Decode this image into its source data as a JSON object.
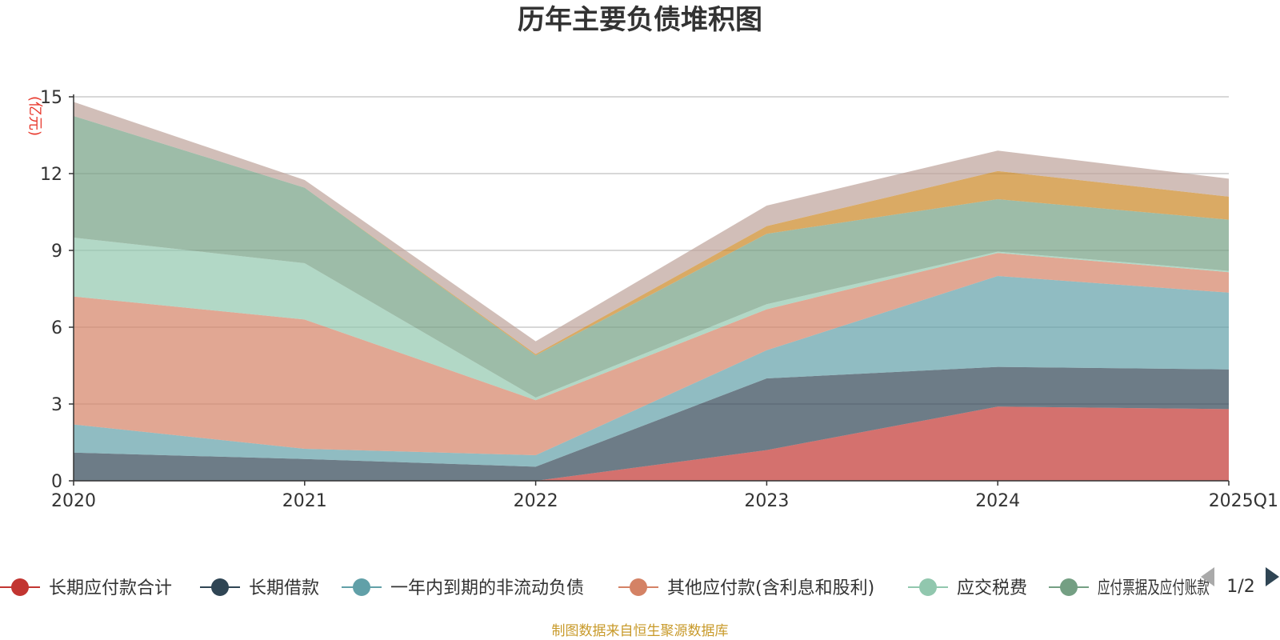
{
  "chart_data": {
    "type": "area",
    "title": "历年主要负债堆积图",
    "ylabel": "(亿元)",
    "ylim": [
      0,
      15
    ],
    "yticks": [
      0,
      3,
      6,
      9,
      12,
      15
    ],
    "categories": [
      "2020",
      "2021",
      "2022",
      "2023",
      "2024",
      "2025Q1"
    ],
    "grid": true,
    "stacked": true,
    "series": [
      {
        "name": "长期应付款合计",
        "color": "#c23531",
        "values": [
          0,
          0,
          0,
          1.2,
          2.9,
          2.8
        ]
      },
      {
        "name": "长期借款",
        "color": "#2f4554",
        "values": [
          1.1,
          0.85,
          0.55,
          2.8,
          1.55,
          1.55
        ]
      },
      {
        "name": "一年内到期的非流动负债",
        "color": "#61a0a8",
        "values": [
          1.1,
          0.4,
          0.45,
          1.1,
          3.55,
          3.0
        ]
      },
      {
        "name": "其他应付款(含利息和股利)",
        "color": "#d48265",
        "values": [
          5.0,
          5.05,
          2.15,
          1.6,
          0.9,
          0.8
        ]
      },
      {
        "name": "应交税费",
        "color": "#91c7ae",
        "values": [
          2.3,
          2.2,
          0.1,
          0.2,
          0.05,
          0.05
        ]
      },
      {
        "name": "应付票据及应付账款",
        "color": "#749f83",
        "values": [
          4.75,
          2.95,
          1.65,
          2.75,
          2.05,
          2.0
        ]
      },
      {
        "name": "",
        "color": "#ca8622",
        "values": [
          0,
          0,
          0.05,
          0.3,
          1.1,
          0.9
        ]
      },
      {
        "name": "",
        "color": "#bda29a",
        "values": [
          0.55,
          0.3,
          0.5,
          0.8,
          0.8,
          0.7
        ]
      }
    ]
  },
  "legend": {
    "visible_items": [
      {
        "label": "长期应付款合计",
        "color": "#c23531"
      },
      {
        "label": "长期借款",
        "color": "#2f4554"
      },
      {
        "label": "一年内到期的非流动负债",
        "color": "#61a0a8"
      },
      {
        "label": "其他应付款(含利息和股利)",
        "color": "#d48265"
      },
      {
        "label": "应交税费",
        "color": "#91c7ae"
      },
      {
        "label": "应付票据及应付账款",
        "color": "#749f83"
      }
    ],
    "page": "1/2"
  },
  "source": "制图数据来自恒生聚源数据库"
}
